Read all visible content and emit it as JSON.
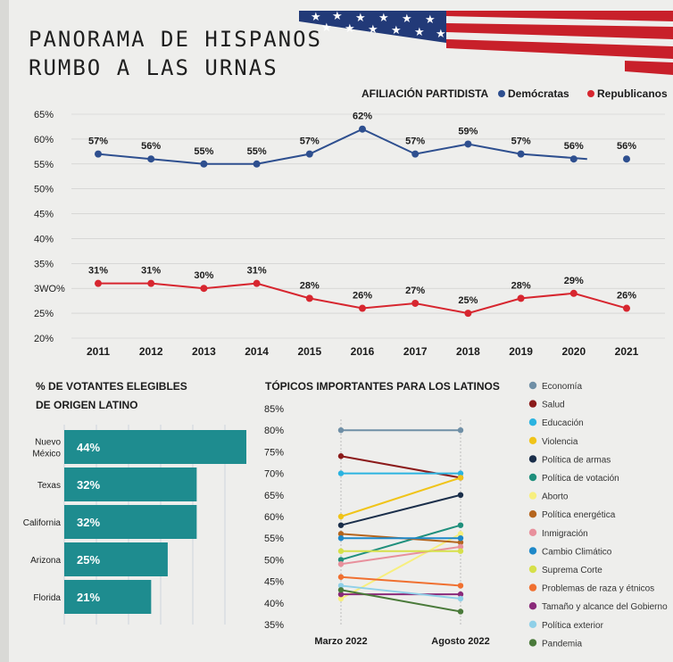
{
  "page": {
    "title_line1": "PANORAMA DE HISPANOS",
    "title_line2": "RUMBO A LAS URNAS"
  },
  "colors": {
    "democrats": "#2e4f8f",
    "republicans": "#d7262f",
    "bar": "#1e8c8f",
    "text": "#1b1b1b",
    "flag_red": "#c8202a",
    "flag_blue": "#223a78"
  },
  "chart_data": [
    {
      "type": "line",
      "legend_title": "AFILIACIÓN PARTIDISTA",
      "legend_placement": "top-right",
      "x": [
        "2011",
        "2012",
        "2013",
        "2014",
        "2015",
        "2016",
        "2017",
        "2018",
        "2019",
        "2020",
        "2021"
      ],
      "y_ticks": [
        "65%",
        "60%",
        "55%",
        "50%",
        "45%",
        "40%",
        "35%",
        "3WO%",
        "25%",
        "20%"
      ],
      "ylim": [
        20,
        65
      ],
      "grid": true,
      "series": [
        {
          "name": "Demócratas",
          "values": [
            57,
            56,
            55,
            55,
            57,
            62,
            57,
            59,
            57,
            56,
            56
          ],
          "labels": [
            "57%",
            "56%",
            "55%",
            "55%",
            "57%",
            "62%",
            "57%",
            "59%",
            "57%",
            "56%",
            "56%"
          ]
        },
        {
          "name": "Republicanos",
          "values": [
            31,
            31,
            30,
            31,
            28,
            26,
            27,
            25,
            28,
            29,
            26
          ],
          "labels": [
            "31%",
            "31%",
            "30%",
            "31%",
            "28%",
            "26%",
            "27%",
            "25%",
            "28%",
            "29%",
            "26%"
          ]
        }
      ]
    },
    {
      "type": "bar",
      "orientation": "horizontal",
      "title_line1": "% DE VOTANTES ELEGIBLES",
      "title_line2": "DE ORIGEN LATINO",
      "categories": [
        [
          "Nuevo",
          "México"
        ],
        [
          "Texas"
        ],
        [
          "California"
        ],
        [
          "Arizona"
        ],
        [
          "Florida"
        ]
      ],
      "values": [
        44,
        32,
        32,
        25,
        21
      ],
      "labels": [
        "44%",
        "32%",
        "32%",
        "25%",
        "21%"
      ]
    },
    {
      "type": "line",
      "subtype": "slope",
      "title": "TÓPICOS IMPORTANTES PARA LOS LATINOS",
      "x": [
        "Marzo 2022",
        "Agosto 2022"
      ],
      "y_ticks": [
        "85%",
        "80%",
        "75%",
        "70%",
        "65%",
        "60%",
        "55%",
        "50%",
        "45%",
        "40%",
        "35%"
      ],
      "ylim": [
        35,
        85
      ],
      "legend_placement": "right",
      "series": [
        {
          "name": "Economía",
          "color": "#6f8fa6",
          "values": [
            80,
            80
          ]
        },
        {
          "name": "Salud",
          "color": "#8b1a1a",
          "values": [
            74,
            69
          ]
        },
        {
          "name": "Educación",
          "color": "#2bb3e0",
          "values": [
            70,
            70
          ]
        },
        {
          "name": "Violencia",
          "color": "#f0c419",
          "values": [
            60,
            69
          ]
        },
        {
          "name": "Política de armas",
          "color": "#1a2e4a",
          "values": [
            58,
            65
          ]
        },
        {
          "name": "Política de votación",
          "color": "#1f8f7c",
          "values": [
            50,
            58
          ]
        },
        {
          "name": "Aborto",
          "color": "#f7ef7e",
          "values": [
            41,
            56
          ]
        },
        {
          "name": "Política energética",
          "color": "#b5651d",
          "values": [
            56,
            54
          ]
        },
        {
          "name": "Inmigración",
          "color": "#e8909c",
          "values": [
            49,
            53
          ]
        },
        {
          "name": "Cambio Climático",
          "color": "#1e88c8",
          "values": [
            55,
            55
          ]
        },
        {
          "name": "Suprema Corte",
          "color": "#d6e04a",
          "values": [
            52,
            52
          ]
        },
        {
          "name": "Problemas de raza y étnicos",
          "color": "#f07030",
          "values": [
            46,
            44
          ]
        },
        {
          "name": "Tamaño y alcance del Gobierno",
          "color": "#8a2a7a",
          "values": [
            42,
            42
          ]
        },
        {
          "name": "Política exterior",
          "color": "#8fd0e8",
          "values": [
            44,
            41
          ]
        },
        {
          "name": "Pandemia",
          "color": "#4a7a3a",
          "values": [
            43,
            38
          ]
        }
      ]
    }
  ]
}
